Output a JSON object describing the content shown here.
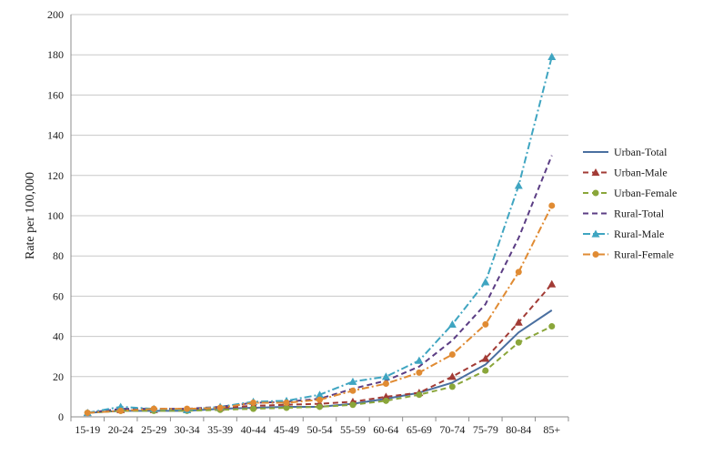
{
  "chart_data": {
    "type": "line",
    "title": "",
    "xlabel": "",
    "ylabel": "Rate per 100,000",
    "ylim": [
      0,
      200
    ],
    "yticks": [
      0,
      20,
      40,
      60,
      80,
      100,
      120,
      140,
      160,
      180,
      200
    ],
    "grid": "horizontal",
    "legend_position": "right",
    "categories": [
      "15-19",
      "20-24",
      "25-29",
      "30-34",
      "35-39",
      "40-44",
      "45-49",
      "50-54",
      "55-59",
      "60-64",
      "65-69",
      "70-74",
      "75-79",
      "80-84",
      "85+"
    ],
    "series": [
      {
        "name": "Urban-Total",
        "color": "#4a6fa0",
        "dash": "solid",
        "marker": "none",
        "values": [
          2,
          3,
          3,
          3,
          4,
          4.5,
          5,
          5,
          6.5,
          9,
          12,
          17,
          26,
          42,
          53
        ]
      },
      {
        "name": "Urban-Male",
        "color": "#a23b35",
        "dash": "dashed",
        "marker": "triangle",
        "values": [
          2,
          3.5,
          3.5,
          3.5,
          4.5,
          5.5,
          6,
          6.5,
          7.5,
          10,
          12,
          20,
          29,
          47,
          66
        ]
      },
      {
        "name": "Urban-Female",
        "color": "#8aa63a",
        "dash": "dashed",
        "marker": "circle",
        "values": [
          2,
          3,
          3,
          3,
          3.5,
          4,
          4.5,
          5,
          6,
          8,
          11,
          15,
          23,
          37,
          45
        ]
      },
      {
        "name": "Rural-Total",
        "color": "#5b3d84",
        "dash": "dashed",
        "marker": "none",
        "values": [
          2,
          4,
          4,
          4,
          5,
          7,
          7.5,
          9,
          14,
          18,
          25,
          38,
          56,
          89,
          130
        ]
      },
      {
        "name": "Rural-Male",
        "color": "#3fa5c1",
        "dash": "dashdot",
        "marker": "triangle",
        "values": [
          2,
          5,
          4,
          3.5,
          5,
          7.5,
          8,
          11,
          17.5,
          20,
          28,
          46,
          67,
          115,
          179
        ]
      },
      {
        "name": "Rural-Female",
        "color": "#e08b33",
        "dash": "dashdot",
        "marker": "circle",
        "values": [
          2,
          3,
          4,
          4,
          4.5,
          7,
          7,
          8.5,
          13,
          16.5,
          22,
          31,
          46,
          72,
          105
        ]
      }
    ]
  }
}
